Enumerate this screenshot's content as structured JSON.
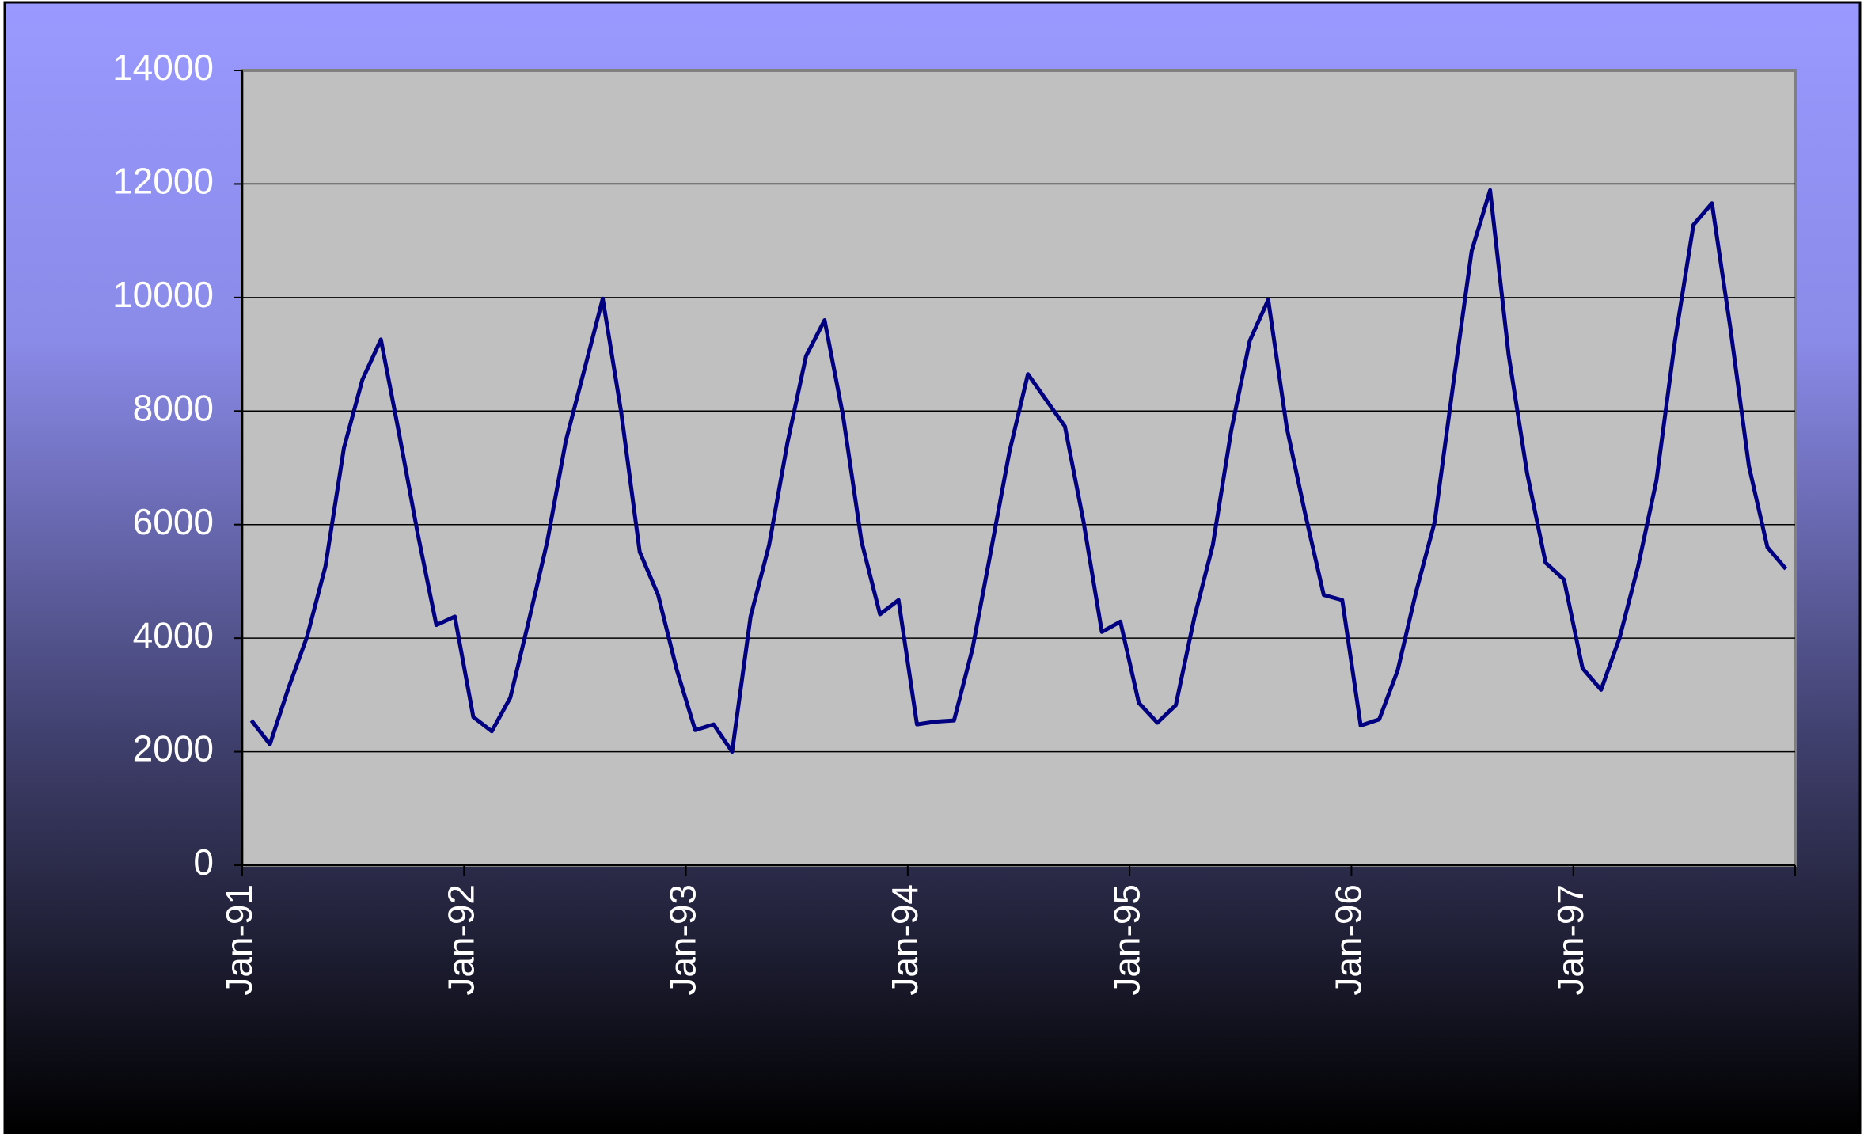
{
  "chart_data": {
    "type": "line",
    "categories": [
      "Jan-91",
      null,
      null,
      null,
      null,
      null,
      null,
      null,
      null,
      null,
      null,
      null,
      "Jan-92",
      null,
      null,
      null,
      null,
      null,
      null,
      null,
      null,
      null,
      null,
      null,
      "Jan-93",
      null,
      null,
      null,
      null,
      null,
      null,
      null,
      null,
      null,
      null,
      null,
      "Jan-94",
      null,
      null,
      null,
      null,
      null,
      null,
      null,
      null,
      null,
      null,
      null,
      "Jan-95",
      null,
      null,
      null,
      null,
      null,
      null,
      null,
      null,
      null,
      null,
      null,
      "Jan-96",
      null,
      null,
      null,
      null,
      null,
      null,
      null,
      null,
      null,
      null,
      null,
      "Jan-97",
      null,
      null,
      null,
      null,
      null,
      null,
      null,
      null,
      null,
      null,
      null
    ],
    "values": [
      2550,
      2130,
      3120,
      4020,
      5260,
      7350,
      8550,
      9260,
      7580,
      5830,
      4230,
      4380,
      2610,
      2360,
      2950,
      4300,
      5700,
      7470,
      8720,
      9980,
      7980,
      5520,
      4760,
      3450,
      2380,
      2480,
      2000,
      4380,
      5640,
      7450,
      8970,
      9600,
      7920,
      5700,
      4420,
      4670,
      2480,
      2530,
      2550,
      3810,
      5540,
      7280,
      8650,
      8190,
      7730,
      6060,
      4110,
      4290,
      2860,
      2510,
      2820,
      4360,
      5640,
      7660,
      9240,
      9960,
      7710,
      6190,
      4760,
      4670,
      2460,
      2570,
      3430,
      4820,
      6040,
      8460,
      10820,
      11890,
      8990,
      6910,
      5330,
      5030,
      3470,
      3090,
      4000,
      5260,
      6780,
      9240,
      11280,
      11660,
      9450,
      7030,
      5600,
      5220
    ],
    "color": "#000080",
    "ylim": [
      0,
      14000
    ],
    "yticks": [
      0,
      2000,
      4000,
      6000,
      8000,
      10000,
      12000,
      14000
    ],
    "grid": true
  }
}
